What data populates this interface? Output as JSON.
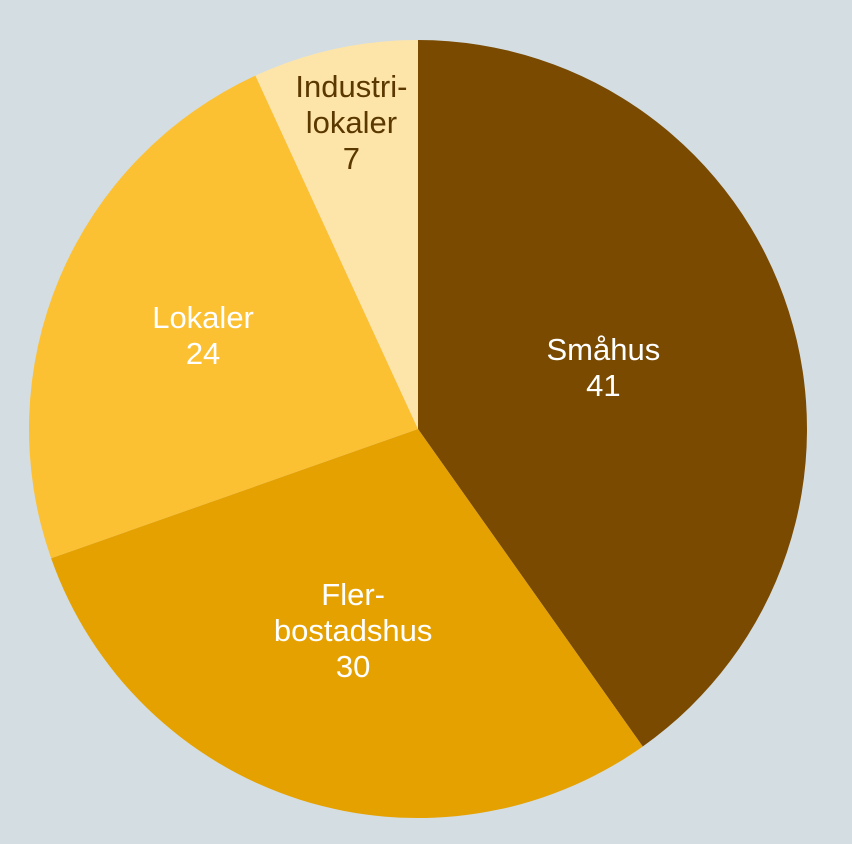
{
  "chart_data": {
    "type": "pie",
    "categories": [
      [
        "Småhus"
      ],
      [
        "Fler-",
        "bostadshus"
      ],
      [
        "Lokaler"
      ],
      [
        "Industri-",
        "lokaler"
      ]
    ],
    "values": [
      41,
      30,
      24,
      7
    ],
    "colors": [
      "#7a4a00",
      "#e5a100",
      "#fcc033",
      "#fde5aa"
    ],
    "label_colors": [
      "#ffffff",
      "#ffffff",
      "#ffffff",
      "#5a3800"
    ]
  }
}
